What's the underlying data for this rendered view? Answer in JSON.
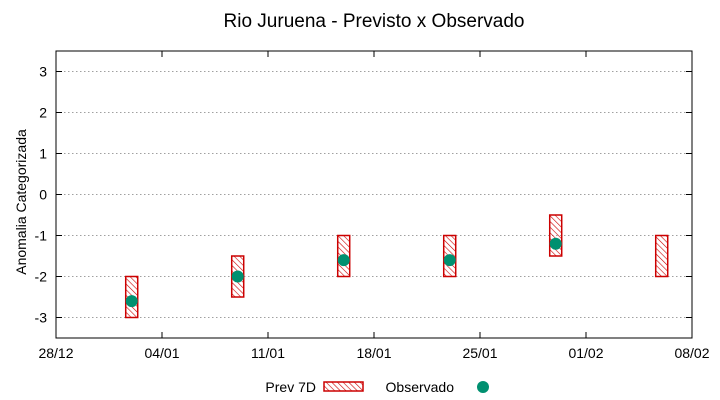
{
  "chart_data": {
    "type": "interval",
    "title": "Rio Juruena - Previsto x Observado",
    "xlabel": "",
    "ylabel": "Anomalia Categorizada",
    "ylim": [
      -3.5,
      3.5
    ],
    "yticks": [
      -3,
      -2,
      -1,
      0,
      1,
      2,
      3
    ],
    "xlim_days": [
      0,
      42
    ],
    "xticks": [
      {
        "day": 0,
        "label": "28/12"
      },
      {
        "day": 7,
        "label": "04/01"
      },
      {
        "day": 14,
        "label": "11/01"
      },
      {
        "day": 21,
        "label": "18/01"
      },
      {
        "day": 28,
        "label": "25/01"
      },
      {
        "day": 35,
        "label": "01/02"
      },
      {
        "day": 42,
        "label": "08/02"
      }
    ],
    "grid": "horizontal dotted",
    "legend_position": "bottom",
    "series": [
      {
        "name": "Prev 7D",
        "kind": "hatched-box",
        "color": "#cc0000",
        "points": [
          {
            "day": 5,
            "low": -3,
            "high": -2
          },
          {
            "day": 12,
            "low": -2.5,
            "high": -1.5
          },
          {
            "day": 19,
            "low": -2,
            "high": -1
          },
          {
            "day": 26,
            "low": -2,
            "high": -1
          },
          {
            "day": 33,
            "low": -1.5,
            "high": -0.5
          },
          {
            "day": 40,
            "low": -2,
            "high": -1
          }
        ]
      },
      {
        "name": "Observado",
        "kind": "point",
        "color": "#009070",
        "points": [
          {
            "day": 5,
            "value": -2.6
          },
          {
            "day": 12,
            "value": -2
          },
          {
            "day": 19,
            "value": -1.6
          },
          {
            "day": 26,
            "value": -1.6
          },
          {
            "day": 33,
            "value": -1.2
          }
        ]
      }
    ]
  }
}
